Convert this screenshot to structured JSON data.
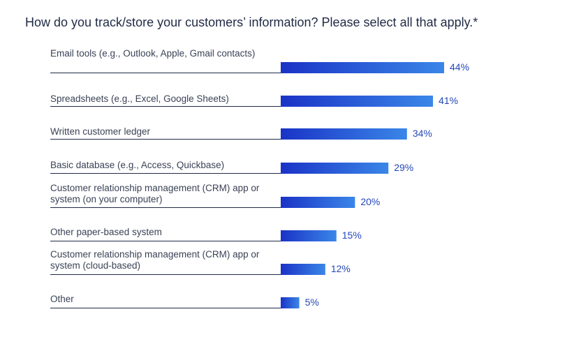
{
  "chart_data": {
    "type": "bar",
    "orientation": "horizontal",
    "title": "How do you track/store your customers’ information? Please select all that apply.*",
    "categories": [
      "Email tools (e.g., Outlook, Apple, Gmail contacts)",
      "Spreadsheets (e.g., Excel, Google Sheets)",
      "Written customer ledger",
      "Basic database (e.g., Access, Quickbase)",
      "Customer relationship management (CRM) app or system (on your computer)",
      "Other paper-based system",
      "Customer relationship management (CRM) app or system (cloud-based)",
      "Other"
    ],
    "values": [
      44,
      41,
      34,
      29,
      20,
      15,
      12,
      5
    ],
    "value_labels": [
      "44%",
      "41%",
      "34%",
      "29%",
      "20%",
      "15%",
      "12%",
      "5%"
    ],
    "unit": "%",
    "xlim": [
      0,
      44
    ],
    "grid": false,
    "legend": "none"
  },
  "colors": {
    "bar_start": "#1a33c6",
    "bar_end": "#3a86e8",
    "value_text": "#2347b8",
    "label_text": "#3a4256",
    "divider": "#1f2a44"
  }
}
